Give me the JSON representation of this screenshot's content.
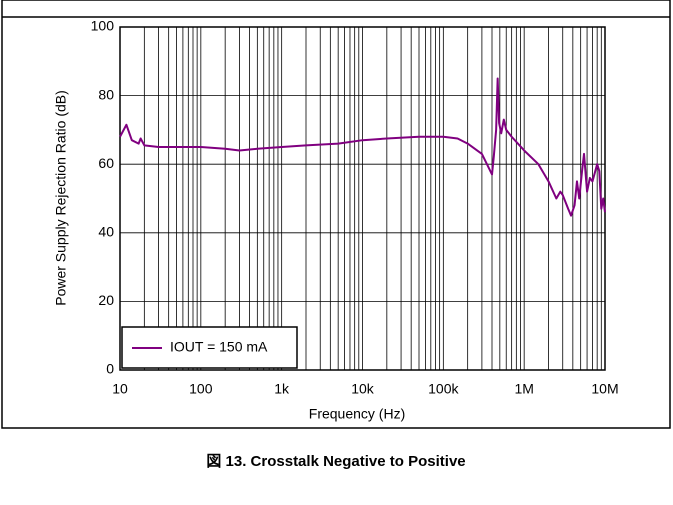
{
  "chart_data": {
    "type": "line",
    "caption": "図 13. Crosstalk Negative to Positive",
    "x_label": "Frequency (Hz)",
    "y_label": "Power Supply Rejection Ratio (dB)",
    "log_x": true,
    "grid": true,
    "legend": "lower left",
    "xlim": [
      10,
      10000000
    ],
    "xticks": [
      10,
      100,
      {
        "value": 1000,
        "label": "1k"
      },
      {
        "value": 10000,
        "label": "10k"
      },
      {
        "value": 100000,
        "label": "100k"
      },
      {
        "value": 1000000,
        "label": "1M"
      },
      {
        "value": 10000000,
        "label": "10M"
      }
    ],
    "ylim": [
      0,
      100
    ],
    "yticks": [
      0,
      20,
      40,
      60,
      80,
      100
    ],
    "x": [
      10,
      12,
      14,
      17,
      18,
      20,
      30,
      50,
      100,
      200,
      300,
      500,
      1000,
      2000,
      5000,
      10000,
      20000,
      50000,
      100000,
      150000,
      200000,
      300000,
      400000,
      420000,
      450000,
      470000,
      490000,
      520000,
      560000,
      600000,
      700000,
      1000000,
      1500000,
      2000000,
      2500000,
      2800000,
      3000000,
      3500000,
      3800000,
      4200000,
      4500000,
      4800000,
      5200000,
      5500000,
      6000000,
      6500000,
      7000000,
      8000000,
      8500000,
      9000000,
      9500000,
      10000000
    ],
    "series": [
      {
        "name": "IOUT = 150 mA",
        "color": "#800080",
        "values": [
          68,
          71.5,
          67,
          66,
          67.5,
          65.5,
          65,
          65,
          65,
          64.5,
          64,
          64.5,
          65,
          65.5,
          66,
          67,
          67.5,
          68,
          68,
          67.5,
          66,
          63,
          57,
          62,
          70,
          85,
          72,
          69,
          73,
          70,
          68,
          64,
          60,
          55,
          50,
          52,
          51,
          47,
          45,
          48,
          55,
          50,
          58,
          63,
          52,
          56,
          55,
          60,
          58,
          47,
          50,
          46
        ]
      }
    ]
  }
}
